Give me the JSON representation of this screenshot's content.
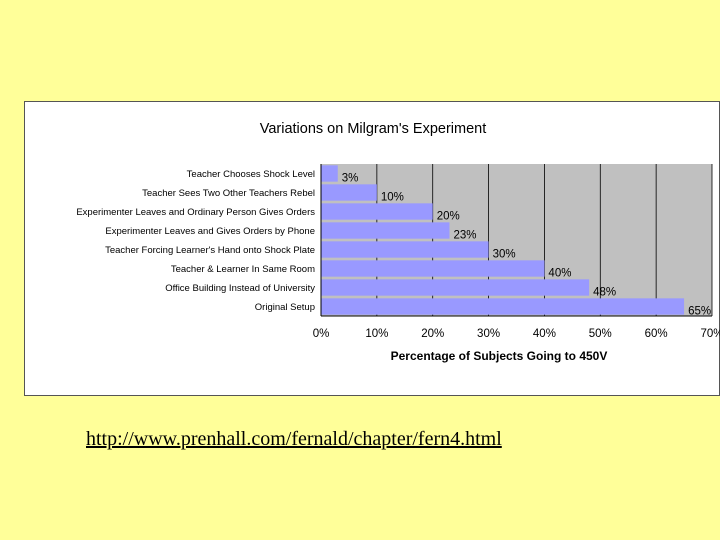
{
  "chart_data": {
    "type": "bar",
    "orientation": "horizontal",
    "title": "Variations on Milgram's Experiment",
    "xlabel": "Percentage of Subjects Going to 450V",
    "ylabel": "",
    "categories": [
      "Teacher Chooses Shock Level",
      "Teacher Sees Two Other Teachers Rebel",
      "Experimenter Leaves and Ordinary Person Gives Orders",
      "Experimenter Leaves and Gives Orders by Phone",
      "Teacher Forcing Learner's Hand onto Shock Plate",
      "Teacher & Learner In Same Room",
      "Office Building Instead of University",
      "Original Setup"
    ],
    "values": [
      3,
      10,
      20,
      23,
      30,
      40,
      48,
      65
    ],
    "data_labels": [
      "3%",
      "10%",
      "20%",
      "23%",
      "30%",
      "40%",
      "48%",
      "65%"
    ],
    "xlim": [
      0,
      70
    ],
    "xticks": [
      "0%",
      "10%",
      "20%",
      "30%",
      "40%",
      "50%",
      "60%",
      "70%"
    ],
    "grid": true,
    "legend": "none",
    "colors": {
      "bar": "#9999FF",
      "plot_background": "#C0C0C0",
      "gridline": "#000000"
    }
  },
  "footer": {
    "link_text": "http://www.prenhall.com/fernald/chapter/fern4.html"
  },
  "colors": {
    "page_background": "#FFFF99",
    "panel_background": "#FFFFFF"
  }
}
